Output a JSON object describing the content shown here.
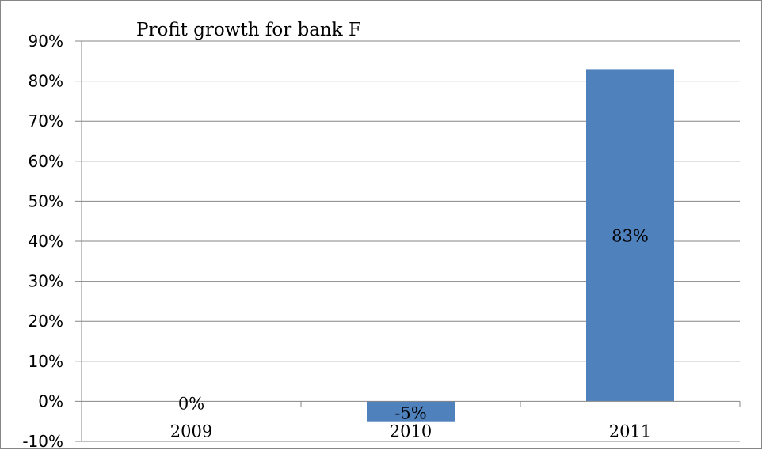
{
  "chart_data": {
    "type": "bar",
    "title": "Profit growth for bank F",
    "categories": [
      "2009",
      "2010",
      "2011"
    ],
    "values": [
      0,
      -5,
      83
    ],
    "data_labels": [
      "0%",
      "-5%",
      "83%"
    ],
    "xlabel": "",
    "ylabel": "",
    "ylim": [
      -10,
      90
    ],
    "y_ticks": [
      -10,
      0,
      10,
      20,
      30,
      40,
      50,
      60,
      70,
      80,
      90
    ],
    "y_tick_format": "%",
    "grid": true,
    "legend": "none",
    "bar_color": "#4f81bd",
    "grid_color": "#868686"
  }
}
